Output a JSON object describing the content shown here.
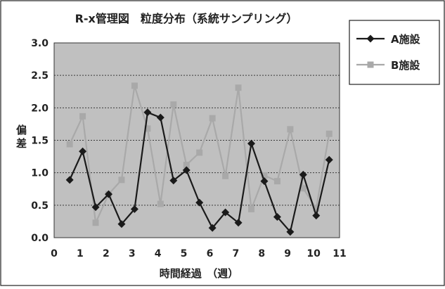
{
  "chart_data": {
    "type": "line",
    "title": "R-x管理図　粒度分布（系統サンプリング）",
    "xlabel": "時間経過　（週）",
    "ylabel": "偏差",
    "xlim": [
      0,
      11
    ],
    "ylim": [
      0,
      3.0
    ],
    "x_ticks": [
      0,
      1,
      2,
      3,
      4,
      5,
      6,
      7,
      8,
      9,
      10,
      11
    ],
    "y_ticks": [
      "0.0",
      "0.5",
      "1.0",
      "1.5",
      "2.0",
      "2.5",
      "3.0"
    ],
    "grid": "horizontal dashed",
    "legend_position": "right",
    "plot_background": "#c0c0c0",
    "series": [
      {
        "name": "A施設",
        "color": "#1a1a1a",
        "marker": "diamond",
        "x": [
          0.6,
          1.1,
          1.6,
          2.1,
          2.6,
          3.1,
          3.6,
          4.1,
          4.6,
          5.1,
          5.6,
          6.1,
          6.6,
          7.1,
          7.6,
          8.1,
          8.6,
          9.1,
          9.6,
          10.1,
          10.6
        ],
        "y": [
          0.89,
          1.33,
          0.47,
          0.67,
          0.21,
          0.44,
          1.93,
          1.85,
          0.88,
          1.04,
          0.54,
          0.15,
          0.39,
          0.23,
          1.45,
          0.87,
          0.32,
          0.09,
          0.97,
          0.34,
          1.2
        ]
      },
      {
        "name": "B施設",
        "color": "#a9a9a9",
        "marker": "square",
        "x": [
          0.6,
          1.1,
          1.6,
          2.1,
          2.6,
          3.1,
          3.6,
          4.1,
          4.6,
          5.1,
          5.6,
          6.1,
          6.6,
          7.1,
          7.6,
          8.1,
          8.6,
          9.1,
          9.6,
          10.1,
          10.6
        ],
        "y": [
          1.44,
          1.87,
          0.23,
          0.67,
          0.89,
          2.34,
          1.68,
          0.52,
          2.05,
          1.12,
          1.31,
          1.84,
          0.95,
          2.31,
          0.44,
          0.96,
          0.87,
          1.67,
          0.76,
          0.45,
          1.6
        ]
      }
    ]
  }
}
